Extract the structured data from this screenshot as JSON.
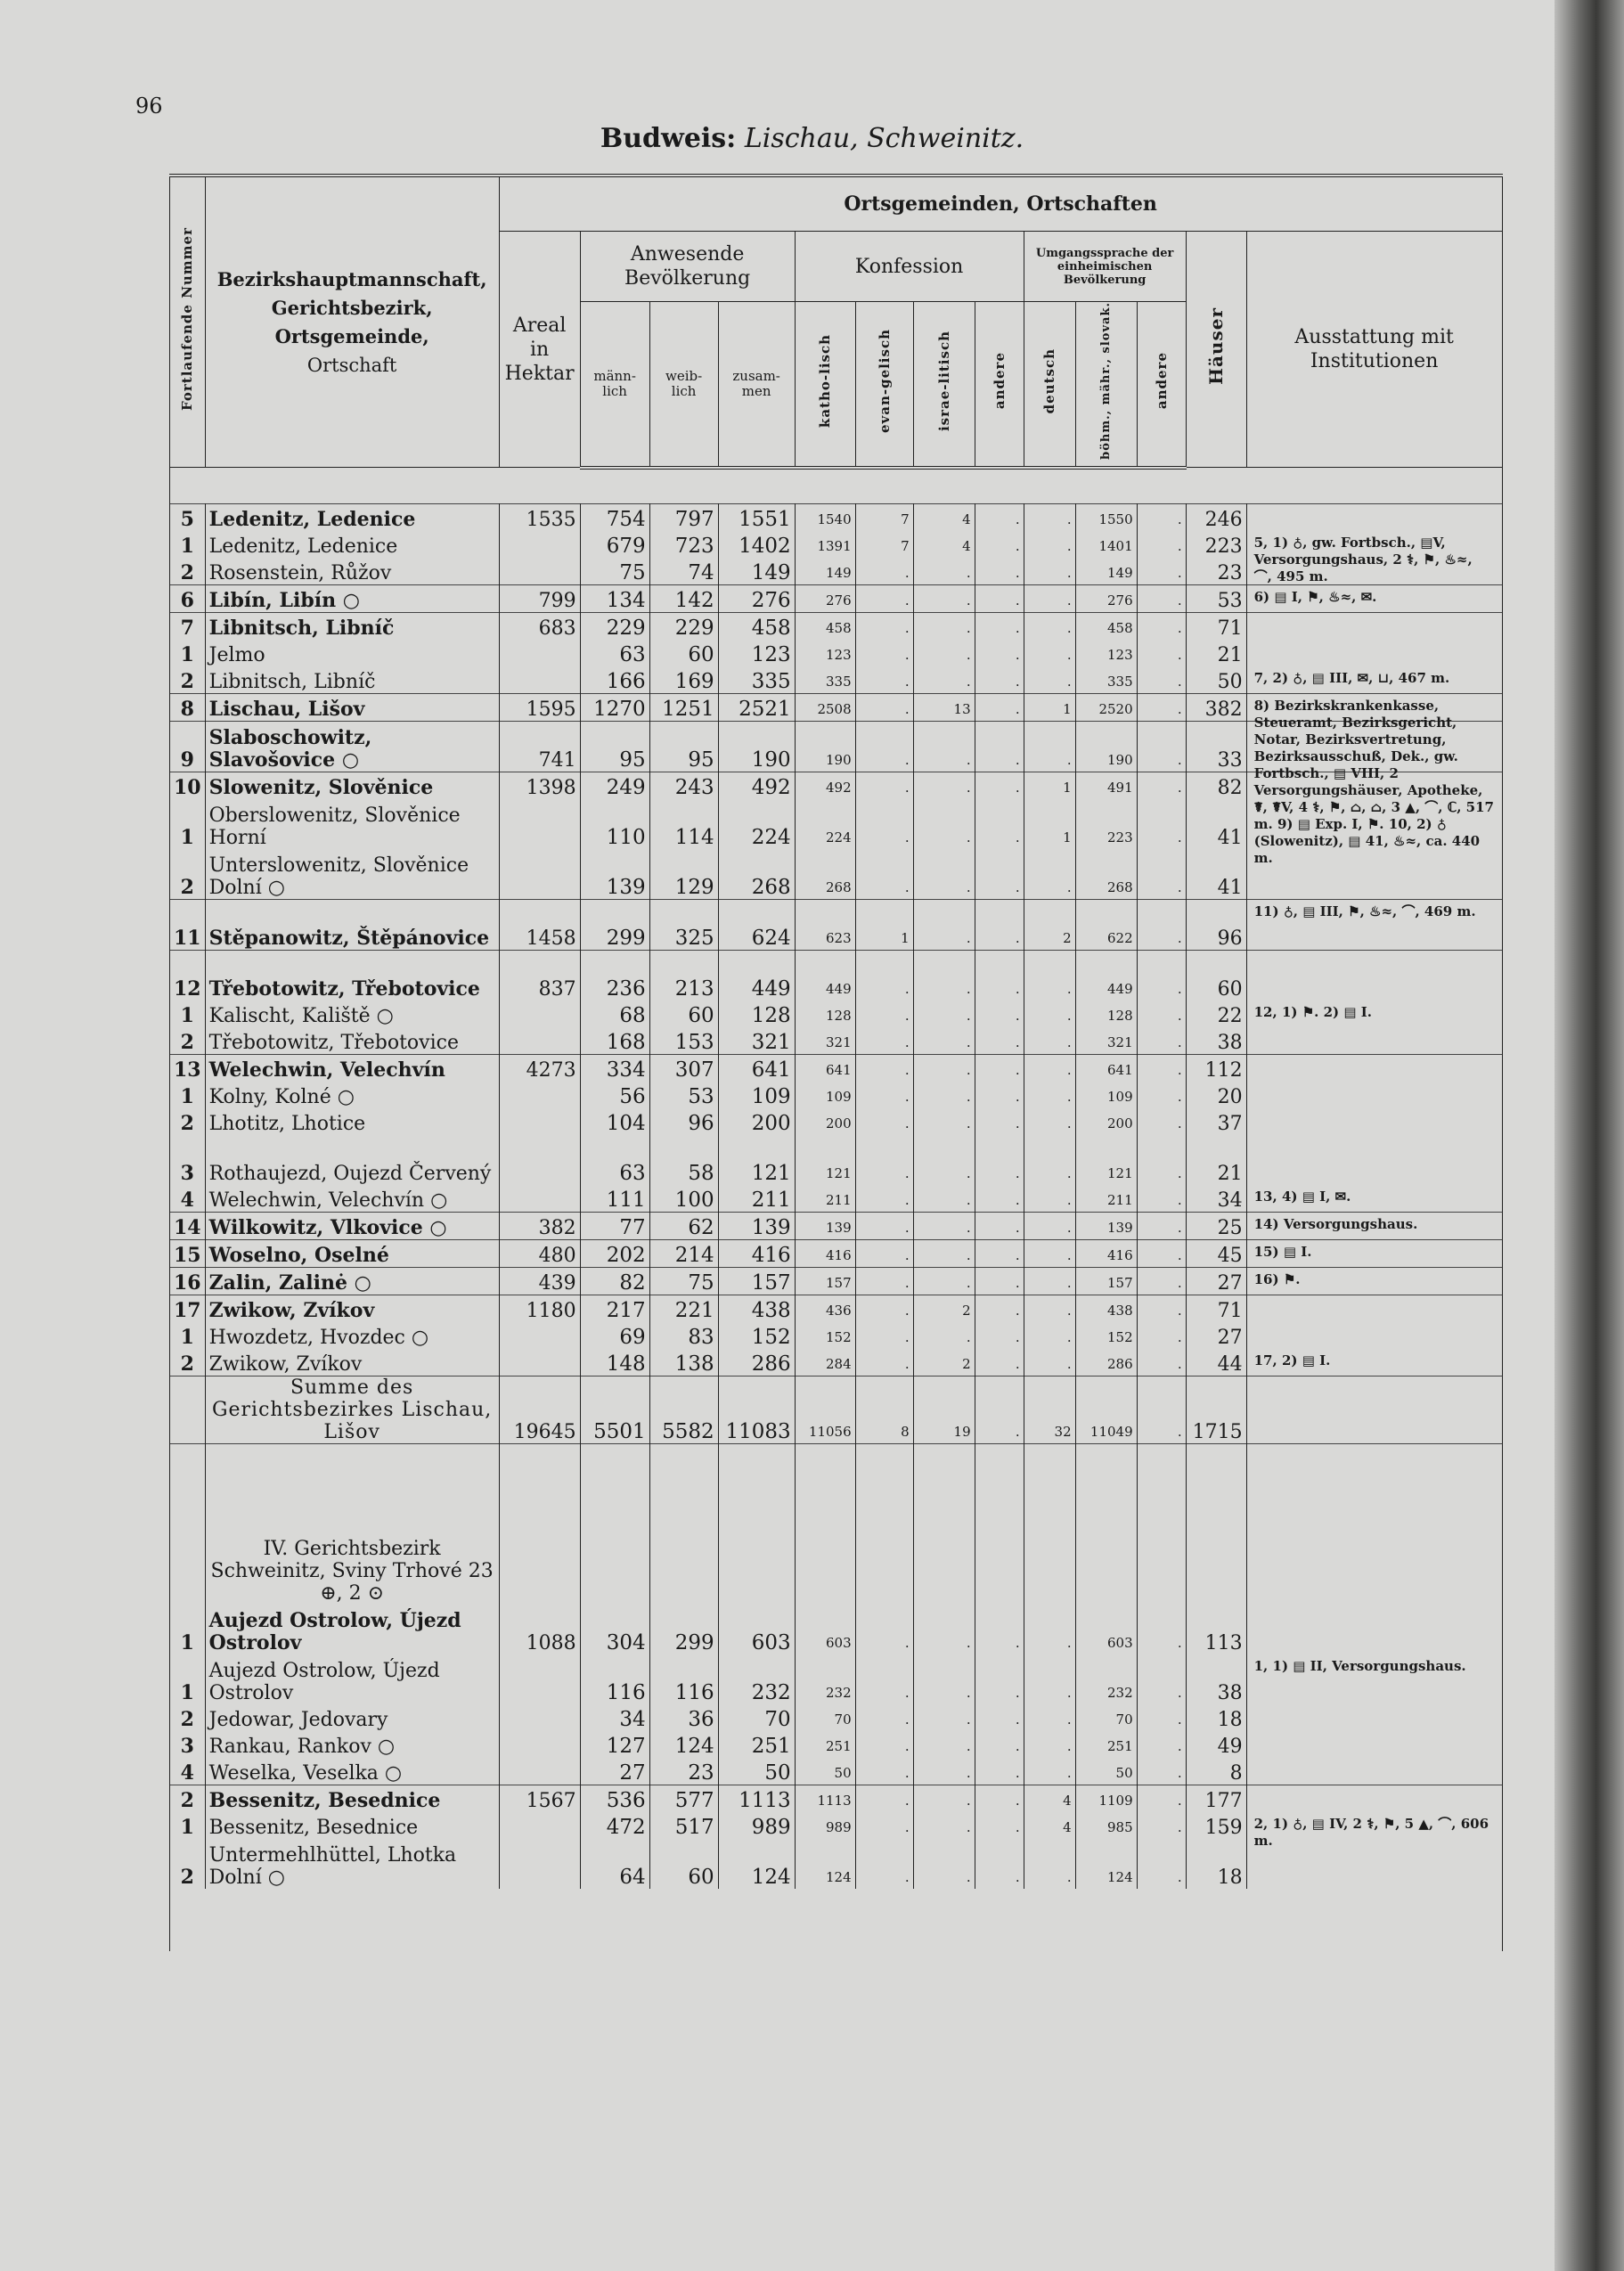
{
  "page_number": "96",
  "title": {
    "main": "Budweis:",
    "sub": "Lischau, Schweinitz."
  },
  "header": {
    "nr": "Fortlaufende Nummer",
    "name": [
      "Bezirkshauptmannschaft,",
      "Gerichtsbezirk,",
      "Ortsgemeinde,",
      "Ortschaft"
    ],
    "group": "Ortsgemeinden, Ortschaften",
    "areal": "Areal in Hektar",
    "bev": "Anwesende Bevölkerung",
    "maenn": "männ-lich",
    "weib": "weib-lich",
    "zus": "zusam-men",
    "konf": "Konfession",
    "kath": "katho-lisch",
    "evan": "evan-gelisch",
    "isr": "israe-litisch",
    "and": "andere",
    "sprache": "Umgangssprache der einheimischen Bevölkerung",
    "deutsch": "deutsch",
    "bohm": "böhm., mähr., slovak.",
    "sand": "andere",
    "haeuser": "Häuser",
    "ausst": "Ausstattung mit Institutionen"
  },
  "rows": [
    {
      "nr": "5",
      "name": "Ledenitz, Ledenice",
      "bold": true,
      "grp": true,
      "v": [
        "1535",
        "754",
        "797",
        "1551",
        "1540",
        "7",
        "4",
        ".",
        ".",
        "1550",
        ".",
        "246"
      ]
    },
    {
      "nr": "1",
      "name": "Ledenitz, Ledenice",
      "v": [
        "",
        "679",
        "723",
        "1402",
        "1391",
        "7",
        "4",
        ".",
        ".",
        "1401",
        ".",
        "223"
      ],
      "note": "5, 1) ♁, gw. Fortbsch., ▤V, Versorgungshaus, 2 ⚕, ⚑, ♨≈, ⌒, 495 m."
    },
    {
      "nr": "2",
      "name": "Rosenstein, Růžov",
      "v": [
        "",
        "75",
        "74",
        "149",
        "149",
        ".",
        ".",
        ".",
        ".",
        "149",
        ".",
        "23"
      ]
    },
    {
      "nr": "6",
      "name": "Libín, Libín ○",
      "bold": true,
      "grp": true,
      "v": [
        "799",
        "134",
        "142",
        "276",
        "276",
        ".",
        ".",
        ".",
        ".",
        "276",
        ".",
        "53"
      ],
      "note": "6) ▤ I, ⚑, ♨≈, ✉."
    },
    {
      "nr": "7",
      "name": "Libnitsch, Libníč",
      "bold": true,
      "grp": true,
      "v": [
        "683",
        "229",
        "229",
        "458",
        "458",
        ".",
        ".",
        ".",
        ".",
        "458",
        ".",
        "71"
      ]
    },
    {
      "nr": "1",
      "name": "Jelmo",
      "v": [
        "",
        "63",
        "60",
        "123",
        "123",
        ".",
        ".",
        ".",
        ".",
        "123",
        ".",
        "21"
      ]
    },
    {
      "nr": "2",
      "name": "Libnitsch, Libníč",
      "v": [
        "",
        "166",
        "169",
        "335",
        "335",
        ".",
        ".",
        ".",
        ".",
        "335",
        ".",
        "50"
      ],
      "note": "7, 2) ♁, ▤ III, ✉, ⊔, 467 m."
    },
    {
      "nr": "8",
      "name": "Lischau, Lišov",
      "bold": true,
      "grp": true,
      "v": [
        "1595",
        "1270",
        "1251",
        "2521",
        "2508",
        ".",
        "13",
        ".",
        "1",
        "2520",
        ".",
        "382"
      ],
      "note": "8) Bezirkskrankenkasse, Steueramt, Bezirksgericht, Notar, Bezirksvertretung, Bezirksausschuß, Dek., gw. Fortbsch., ▤ VIII, 2 Versorgungshäuser, Apotheke, ☤, ☤V, 4 ⚕, ⚑, ⌂, ⌂, 3 ▲, ⌒, ℂ, 517 m. 9) ▤ Exp. I, ⚑. 10, 2) ♁ (Slowenitz), ▤ 41, ♨≈, ca. 440 m."
    },
    {
      "nr": "9",
      "name": "Slaboschowitz, Slavošovice ○",
      "bold": true,
      "grp": true,
      "two": true,
      "v": [
        "741",
        "95",
        "95",
        "190",
        "190",
        ".",
        ".",
        ".",
        ".",
        "190",
        ".",
        "33"
      ]
    },
    {
      "nr": "10",
      "name": "Slowenitz, Slověnice",
      "bold": true,
      "grp": true,
      "v": [
        "1398",
        "249",
        "243",
        "492",
        "492",
        ".",
        ".",
        ".",
        "1",
        "491",
        ".",
        "82"
      ]
    },
    {
      "nr": "1",
      "name": "Oberslowenitz, Slověnice Horní",
      "two": true,
      "v": [
        "",
        "110",
        "114",
        "224",
        "224",
        ".",
        ".",
        ".",
        "1",
        "223",
        ".",
        "41"
      ]
    },
    {
      "nr": "2",
      "name": "Unterslowenitz, Slověnice Dolní ○",
      "two": true,
      "v": [
        "",
        "139",
        "129",
        "268",
        "268",
        ".",
        ".",
        ".",
        ".",
        "268",
        ".",
        "41"
      ]
    },
    {
      "nr": "11",
      "name": "Stěpanowitz, Štěpánovice",
      "bold": true,
      "grp": true,
      "two": true,
      "v": [
        "1458",
        "299",
        "325",
        "624",
        "623",
        "1",
        ".",
        ".",
        "2",
        "622",
        ".",
        "96"
      ],
      "note": "11) ♁, ▤ III, ⚑, ♨≈, ⌒, 469 m."
    },
    {
      "nr": "12",
      "name": "Třebotowitz, Třebotovice",
      "bold": true,
      "grp": true,
      "two": true,
      "v": [
        "837",
        "236",
        "213",
        "449",
        "449",
        ".",
        ".",
        ".",
        ".",
        "449",
        ".",
        "60"
      ]
    },
    {
      "nr": "1",
      "name": "Kalischt, Kaliště ○",
      "v": [
        "",
        "68",
        "60",
        "128",
        "128",
        ".",
        ".",
        ".",
        ".",
        "128",
        ".",
        "22"
      ],
      "note": "12, 1) ⚑. 2) ▤ I."
    },
    {
      "nr": "2",
      "name": "Třebotowitz, Třebotovice",
      "v": [
        "",
        "168",
        "153",
        "321",
        "321",
        ".",
        ".",
        ".",
        ".",
        "321",
        ".",
        "38"
      ]
    },
    {
      "nr": "13",
      "name": "Welechwin, Velechvín",
      "bold": true,
      "grp": true,
      "v": [
        "4273",
        "334",
        "307",
        "641",
        "641",
        ".",
        ".",
        ".",
        ".",
        "641",
        ".",
        "112"
      ]
    },
    {
      "nr": "1",
      "name": "Kolny, Kolné ○",
      "v": [
        "",
        "56",
        "53",
        "109",
        "109",
        ".",
        ".",
        ".",
        ".",
        "109",
        ".",
        "20"
      ]
    },
    {
      "nr": "2",
      "name": "Lhotitz, Lhotice",
      "v": [
        "",
        "104",
        "96",
        "200",
        "200",
        ".",
        ".",
        ".",
        ".",
        "200",
        ".",
        "37"
      ]
    },
    {
      "nr": "3",
      "name": "Rothaujezd, Oujezd Červený",
      "two": true,
      "v": [
        "",
        "63",
        "58",
        "121",
        "121",
        ".",
        ".",
        ".",
        ".",
        "121",
        ".",
        "21"
      ]
    },
    {
      "nr": "4",
      "name": "Welechwin, Velechvín ○",
      "v": [
        "",
        "111",
        "100",
        "211",
        "211",
        ".",
        ".",
        ".",
        ".",
        "211",
        ".",
        "34"
      ],
      "note": "13, 4) ▤ I, ✉."
    },
    {
      "nr": "14",
      "name": "Wilkowitz, Vlkovice ○",
      "bold": true,
      "grp": true,
      "v": [
        "382",
        "77",
        "62",
        "139",
        "139",
        ".",
        ".",
        ".",
        ".",
        "139",
        ".",
        "25"
      ],
      "note": "14) Versorgungshaus."
    },
    {
      "nr": "15",
      "name": "Woselno, Oselné",
      "bold": true,
      "grp": true,
      "v": [
        "480",
        "202",
        "214",
        "416",
        "416",
        ".",
        ".",
        ".",
        ".",
        "416",
        ".",
        "45"
      ],
      "note": "15) ▤ I."
    },
    {
      "nr": "16",
      "name": "Zalin, Zalinė ○",
      "bold": true,
      "grp": true,
      "v": [
        "439",
        "82",
        "75",
        "157",
        "157",
        ".",
        ".",
        ".",
        ".",
        "157",
        ".",
        "27"
      ],
      "note": "16) ⚑."
    },
    {
      "nr": "17",
      "name": "Zwikow, Zvíkov",
      "bold": true,
      "grp": true,
      "v": [
        "1180",
        "217",
        "221",
        "438",
        "436",
        ".",
        "2",
        ".",
        ".",
        "438",
        ".",
        "71"
      ]
    },
    {
      "nr": "1",
      "name": "Hwozdetz, Hvozdec ○",
      "v": [
        "",
        "69",
        "83",
        "152",
        "152",
        ".",
        ".",
        ".",
        ".",
        "152",
        ".",
        "27"
      ]
    },
    {
      "nr": "2",
      "name": "Zwikow, Zvíkov",
      "v": [
        "",
        "148",
        "138",
        "286",
        "284",
        ".",
        "2",
        ".",
        ".",
        "286",
        ".",
        "44"
      ],
      "note": "17, 2) ▤ I."
    },
    {
      "nr": "",
      "name": "Summe des Gerichtsbezirkes Lischau, Lišov",
      "grp": true,
      "two": true,
      "sum": true,
      "v": [
        "19645",
        "5501",
        "5582",
        "11083",
        "11056",
        "8",
        "19",
        ".",
        "32",
        "11049",
        ".",
        "1715"
      ]
    },
    {
      "nr": "",
      "name": "IV. Gerichtsbezirk Schweinitz, Sviny Trhové 23 ⊕, 2 ⊙",
      "grp": true,
      "heading": true,
      "v": [
        "",
        "",
        "",
        "",
        "",
        "",
        "",
        "",
        "",
        "",
        "",
        ""
      ]
    },
    {
      "nr": "1",
      "name": "Aujezd Ostrolow, Újezd Ostrolov",
      "bold": true,
      "two": true,
      "v": [
        "1088",
        "304",
        "299",
        "603",
        "603",
        ".",
        ".",
        ".",
        ".",
        "603",
        ".",
        "113"
      ]
    },
    {
      "nr": "1",
      "name": "Aujezd Ostrolow, Újezd Ostrolov",
      "two": true,
      "v": [
        "",
        "116",
        "116",
        "232",
        "232",
        ".",
        ".",
        ".",
        ".",
        "232",
        ".",
        "38"
      ],
      "note": "1, 1) ▤ II, Versorgungshaus."
    },
    {
      "nr": "2",
      "name": "Jedowar, Jedovary",
      "v": [
        "",
        "34",
        "36",
        "70",
        "70",
        ".",
        ".",
        ".",
        ".",
        "70",
        ".",
        "18"
      ]
    },
    {
      "nr": "3",
      "name": "Rankau, Rankov ○",
      "v": [
        "",
        "127",
        "124",
        "251",
        "251",
        ".",
        ".",
        ".",
        ".",
        "251",
        ".",
        "49"
      ]
    },
    {
      "nr": "4",
      "name": "Weselka, Veselka ○",
      "v": [
        "",
        "27",
        "23",
        "50",
        "50",
        ".",
        ".",
        ".",
        ".",
        "50",
        ".",
        "8"
      ]
    },
    {
      "nr": "2",
      "name": "Bessenitz, Besednice",
      "bold": true,
      "grp": true,
      "v": [
        "1567",
        "536",
        "577",
        "1113",
        "1113",
        ".",
        ".",
        ".",
        "4",
        "1109",
        ".",
        "177"
      ]
    },
    {
      "nr": "1",
      "name": "Bessenitz, Besednice",
      "v": [
        "",
        "472",
        "517",
        "989",
        "989",
        ".",
        ".",
        ".",
        "4",
        "985",
        ".",
        "159"
      ],
      "note": "2, 1) ♁, ▤ IV, 2 ⚕, ⚑, 5 ▲, ⌒, 606 m."
    },
    {
      "nr": "2",
      "name": "Untermehlhüttel, Lhotka Dolní ○",
      "two": true,
      "v": [
        "",
        "64",
        "60",
        "124",
        "124",
        ".",
        ".",
        ".",
        ".",
        "124",
        ".",
        "18"
      ]
    }
  ]
}
